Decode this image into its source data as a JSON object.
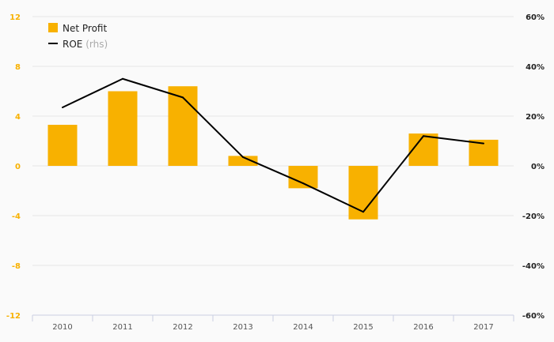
{
  "chart_data": {
    "type": "bar",
    "categories": [
      "2010",
      "2011",
      "2012",
      "2013",
      "2014",
      "2015",
      "2016",
      "2017"
    ],
    "series": [
      {
        "name": "Net Profit",
        "type": "bar",
        "axis": "left",
        "color": "#f8b100",
        "values": [
          3.3,
          6.0,
          6.4,
          0.8,
          -1.8,
          -4.3,
          2.6,
          2.1
        ]
      },
      {
        "name": "ROE",
        "name_suffix": "(rhs)",
        "type": "line",
        "axis": "right",
        "color": "#000000",
        "values": [
          23.5,
          35,
          27.5,
          3.5,
          -7,
          -18.5,
          12,
          9
        ]
      }
    ],
    "y_left": {
      "ylim": [
        -12,
        12
      ],
      "ticks": [
        12,
        8,
        4,
        0,
        -4,
        -8,
        -12
      ],
      "tick_labels": [
        "12",
        "8",
        "4",
        "0",
        "-4",
        "-8",
        "-12"
      ],
      "color": "#f8b100"
    },
    "y_right": {
      "ylim": [
        -60,
        60
      ],
      "ticks": [
        60,
        40,
        20,
        0,
        -20,
        -40,
        -60
      ],
      "tick_labels": [
        "60%",
        "40%",
        "20%",
        "0%",
        "-20%",
        "-40%",
        "-60%"
      ],
      "color": "#222222"
    },
    "grid": true,
    "legend": {
      "position": "top-left",
      "entries": [
        {
          "label": "Net Profit",
          "suffix": "",
          "marker": "square",
          "color": "#f8b100"
        },
        {
          "label": "ROE",
          "suffix": "(rhs)",
          "marker": "line",
          "color": "#000000"
        }
      ]
    }
  }
}
